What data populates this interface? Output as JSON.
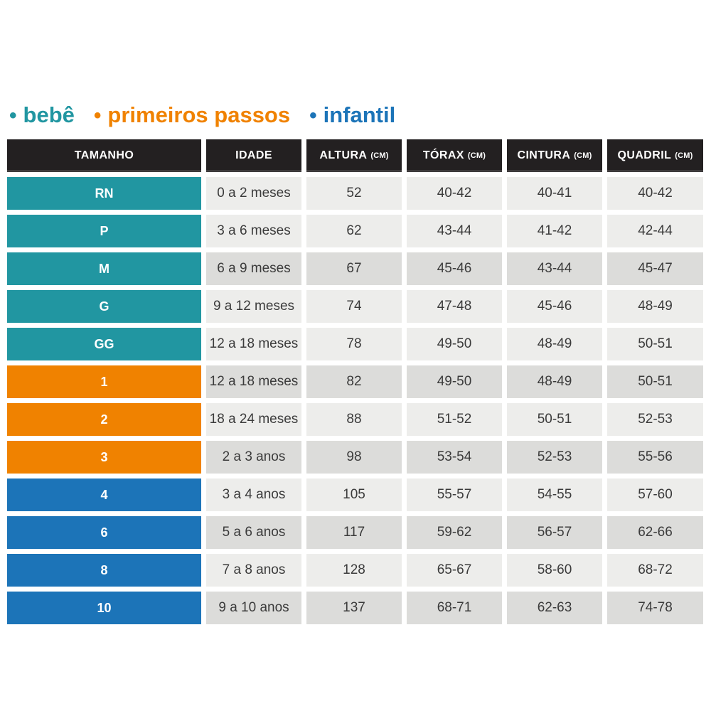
{
  "colors": {
    "bebe": "#2196A1",
    "primeiros_passos": "#F08200",
    "infantil": "#1C74B8",
    "header_bg": "#232021",
    "row_light": "#EDEDEB",
    "row_dark": "#DCDCDA",
    "cell_text": "#3B3B3B"
  },
  "legend": {
    "items": [
      {
        "bullet": "•",
        "label": "bebê",
        "group": "bebe"
      },
      {
        "bullet": "•",
        "label": "primeiros passos",
        "group": "primeiros_passos"
      },
      {
        "bullet": "•",
        "label": "infantil",
        "group": "infantil"
      }
    ]
  },
  "table": {
    "headers": [
      {
        "label": "TAMANHO",
        "unit": ""
      },
      {
        "label": "IDADE",
        "unit": ""
      },
      {
        "label": "ALTURA",
        "unit": "(CM)"
      },
      {
        "label": "TÓRAX",
        "unit": "(CM)"
      },
      {
        "label": "CINTURA",
        "unit": "(CM)"
      },
      {
        "label": "QUADRIL",
        "unit": "(CM)"
      }
    ],
    "rows": [
      {
        "group": "bebe",
        "shade": "light",
        "size": "RN",
        "idade": "0 a 2 meses",
        "altura": "52",
        "torax": "40-42",
        "cintura": "40-41",
        "quadril": "40-42"
      },
      {
        "group": "bebe",
        "shade": "light",
        "size": "P",
        "idade": "3 a 6 meses",
        "altura": "62",
        "torax": "43-44",
        "cintura": "41-42",
        "quadril": "42-44"
      },
      {
        "group": "bebe",
        "shade": "dark",
        "size": "M",
        "idade": "6 a 9 meses",
        "altura": "67",
        "torax": "45-46",
        "cintura": "43-44",
        "quadril": "45-47"
      },
      {
        "group": "bebe",
        "shade": "light",
        "size": "G",
        "idade": "9 a 12 meses",
        "altura": "74",
        "torax": "47-48",
        "cintura": "45-46",
        "quadril": "48-49"
      },
      {
        "group": "bebe",
        "shade": "light",
        "size": "GG",
        "idade": "12 a 18 meses",
        "altura": "78",
        "torax": "49-50",
        "cintura": "48-49",
        "quadril": "50-51"
      },
      {
        "group": "primeiros_passos",
        "shade": "dark",
        "size": "1",
        "idade": "12 a 18 meses",
        "altura": "82",
        "torax": "49-50",
        "cintura": "48-49",
        "quadril": "50-51"
      },
      {
        "group": "primeiros_passos",
        "shade": "light",
        "size": "2",
        "idade": "18 a 24 meses",
        "altura": "88",
        "torax": "51-52",
        "cintura": "50-51",
        "quadril": "52-53"
      },
      {
        "group": "primeiros_passos",
        "shade": "dark",
        "size": "3",
        "idade": "2 a 3 anos",
        "altura": "98",
        "torax": "53-54",
        "cintura": "52-53",
        "quadril": "55-56"
      },
      {
        "group": "infantil",
        "shade": "light",
        "size": "4",
        "idade": "3 a 4 anos",
        "altura": "105",
        "torax": "55-57",
        "cintura": "54-55",
        "quadril": "57-60"
      },
      {
        "group": "infantil",
        "shade": "dark",
        "size": "6",
        "idade": "5 a 6 anos",
        "altura": "117",
        "torax": "59-62",
        "cintura": "56-57",
        "quadril": "62-66"
      },
      {
        "group": "infantil",
        "shade": "light",
        "size": "8",
        "idade": "7 a 8 anos",
        "altura": "128",
        "torax": "65-67",
        "cintura": "58-60",
        "quadril": "68-72"
      },
      {
        "group": "infantil",
        "shade": "dark",
        "size": "10",
        "idade": "9 a 10 anos",
        "altura": "137",
        "torax": "68-71",
        "cintura": "62-63",
        "quadril": "74-78"
      }
    ]
  },
  "chart_data": {
    "type": "table",
    "title": "Tabela de medidas infantil (legenda: bebê / primeiros passos / infantil)",
    "columns": [
      "TAMANHO",
      "IDADE",
      "ALTURA (CM)",
      "TÓRAX (CM)",
      "CINTURA (CM)",
      "QUADRIL (CM)"
    ],
    "groups": [
      {
        "name": "bebê",
        "color": "#2196A1",
        "sizes": [
          "RN",
          "P",
          "M",
          "G",
          "GG"
        ]
      },
      {
        "name": "primeiros passos",
        "color": "#F08200",
        "sizes": [
          "1",
          "2",
          "3"
        ]
      },
      {
        "name": "infantil",
        "color": "#1C74B8",
        "sizes": [
          "4",
          "6",
          "8",
          "10"
        ]
      }
    ],
    "rows": [
      [
        "RN",
        "0 a 2 meses",
        "52",
        "40-42",
        "40-41",
        "40-42"
      ],
      [
        "P",
        "3 a 6 meses",
        "62",
        "43-44",
        "41-42",
        "42-44"
      ],
      [
        "M",
        "6 a 9 meses",
        "67",
        "45-46",
        "43-44",
        "45-47"
      ],
      [
        "G",
        "9 a 12 meses",
        "74",
        "47-48",
        "45-46",
        "48-49"
      ],
      [
        "GG",
        "12 a 18 meses",
        "78",
        "49-50",
        "48-49",
        "50-51"
      ],
      [
        "1",
        "12 a 18 meses",
        "82",
        "49-50",
        "48-49",
        "50-51"
      ],
      [
        "2",
        "18 a 24 meses",
        "88",
        "51-52",
        "50-51",
        "52-53"
      ],
      [
        "3",
        "2 a 3 anos",
        "98",
        "53-54",
        "52-53",
        "55-56"
      ],
      [
        "4",
        "3 a 4 anos",
        "105",
        "55-57",
        "54-55",
        "57-60"
      ],
      [
        "6",
        "5 a 6 anos",
        "117",
        "59-62",
        "56-57",
        "62-66"
      ],
      [
        "8",
        "7 a 8 anos",
        "128",
        "65-67",
        "58-60",
        "68-72"
      ],
      [
        "10",
        "9 a 10 anos",
        "137",
        "68-71",
        "62-63",
        "74-78"
      ]
    ]
  }
}
